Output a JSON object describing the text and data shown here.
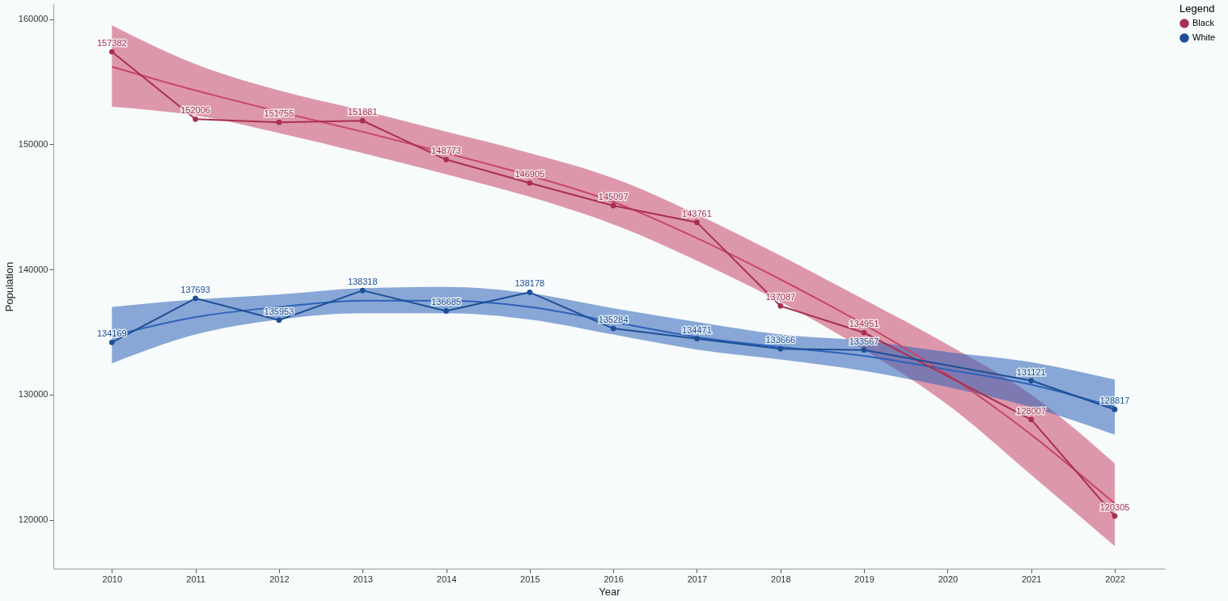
{
  "chart_data": {
    "type": "line",
    "xlabel": "Year",
    "ylabel": "Population",
    "legend_title": "Legend",
    "legend": "right",
    "grid": false,
    "xlim": [
      2009.3,
      2022.6
    ],
    "xticks": [
      2010,
      2011,
      2012,
      2013,
      2014,
      2015,
      2016,
      2017,
      2018,
      2019,
      2020,
      2021,
      2022
    ],
    "ylim": [
      116100,
      161200
    ],
    "yticks": [
      120000,
      130000,
      140000,
      150000,
      160000
    ],
    "series": [
      {
        "type": "line",
        "color": "#c8466a",
        "marker": "none",
        "x": [
          2010,
          2011,
          2012,
          2013,
          2014,
          2015,
          2016,
          2017,
          2018,
          2019,
          2020,
          2021,
          2022
        ],
        "values": [
          156200,
          154300,
          152600,
          151000,
          149300,
          147500,
          145400,
          142500,
          139200,
          135600,
          131600,
          126800,
          121300
        ],
        "lower": [
          153000,
          152300,
          150900,
          149300,
          147600,
          145800,
          143600,
          140700,
          137400,
          133600,
          129200,
          123600,
          117900
        ],
        "upper": [
          159500,
          156400,
          154300,
          152700,
          151000,
          149300,
          147300,
          144400,
          141100,
          137600,
          134000,
          130000,
          124500
        ]
      },
      {
        "type": "line",
        "color": "#2e62b8",
        "marker": "none",
        "x": [
          2010,
          2011,
          2012,
          2013,
          2014,
          2015,
          2016,
          2017,
          2018,
          2019,
          2020,
          2021,
          2022
        ],
        "values": [
          134700,
          136200,
          137000,
          137500,
          137500,
          137000,
          135800,
          134600,
          133800,
          133100,
          132000,
          130800,
          129000
        ],
        "lower": [
          132500,
          134800,
          136000,
          136500,
          136500,
          136000,
          134800,
          133600,
          132800,
          131900,
          130600,
          129000,
          126800
        ],
        "upper": [
          137000,
          137600,
          138000,
          138500,
          138600,
          138100,
          136900,
          135800,
          134800,
          134300,
          133400,
          132600,
          131200
        ]
      },
      {
        "name": "Black",
        "type": "line",
        "color": "#a8304f",
        "marker": "circle",
        "x": [
          2010,
          2011,
          2012,
          2013,
          2014,
          2015,
          2016,
          2017,
          2018,
          2019,
          2021,
          2022
        ],
        "values": [
          157382,
          152006,
          151755,
          151881,
          148773,
          146905,
          145097,
          143761,
          137087,
          134951,
          128007,
          120305
        ],
        "value_labels": [
          "157382",
          "152006",
          "151755",
          "151881",
          "148773",
          "146905",
          "145097",
          "143761",
          "137087",
          "134951",
          "128007",
          "120305"
        ]
      },
      {
        "name": "White",
        "type": "line",
        "color": "#1c4f96",
        "marker": "circle",
        "x": [
          2010,
          2011,
          2012,
          2013,
          2014,
          2015,
          2016,
          2017,
          2018,
          2019,
          2021,
          2022
        ],
        "values": [
          134169,
          137693,
          135953,
          138318,
          136685,
          138178,
          135284,
          134471,
          133666,
          133567,
          131121,
          128817
        ],
        "value_labels": [
          "134169",
          "137693",
          "135953",
          "138318",
          "136685",
          "138178",
          "135284",
          "134471",
          "133666",
          "133567",
          "131121",
          "128817"
        ]
      }
    ]
  }
}
